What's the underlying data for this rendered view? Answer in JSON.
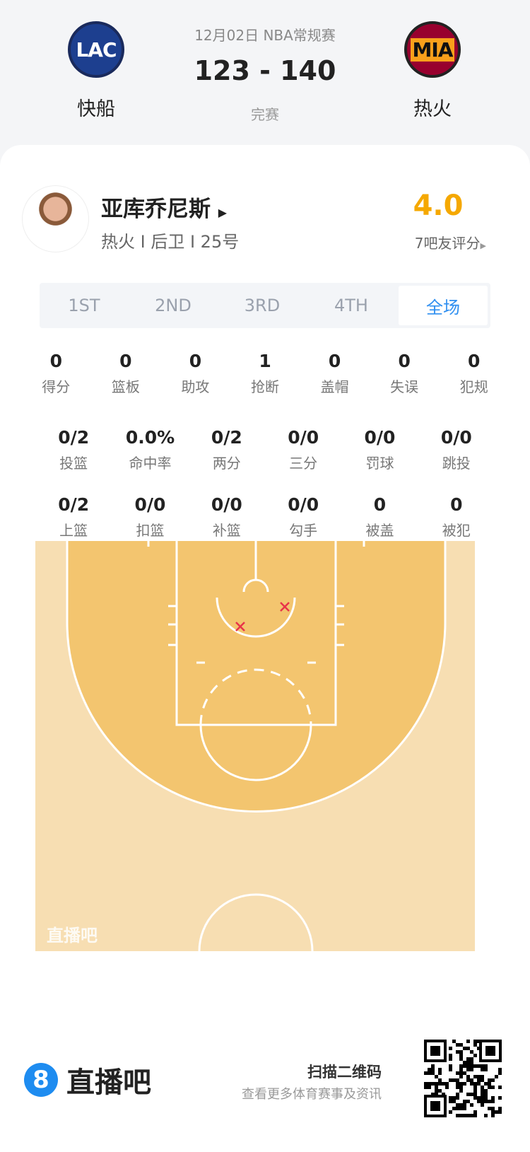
{
  "match": {
    "date_league": "12月02日 NBA常规赛",
    "score": "123 - 140",
    "status": "完赛",
    "home": {
      "abbr": "LAC",
      "name": "快船"
    },
    "away": {
      "abbr": "MIA",
      "name": "热火"
    }
  },
  "player": {
    "name": "亚库乔尼斯",
    "info": "热火 I 后卫 I 25号",
    "rating": "4.0",
    "rating_label": "7吧友评分",
    "rating_color": "#f5a800"
  },
  "tabs": [
    {
      "label": "1ST"
    },
    {
      "label": "2ND"
    },
    {
      "label": "3RD"
    },
    {
      "label": "4TH"
    },
    {
      "label": "全场",
      "active": true
    }
  ],
  "stats_row1": [
    {
      "v": "0",
      "l": "得分"
    },
    {
      "v": "0",
      "l": "篮板"
    },
    {
      "v": "0",
      "l": "助攻"
    },
    {
      "v": "1",
      "l": "抢断"
    },
    {
      "v": "0",
      "l": "盖帽"
    },
    {
      "v": "0",
      "l": "失误"
    },
    {
      "v": "0",
      "l": "犯规"
    }
  ],
  "stats_row2": [
    {
      "v": "0/2",
      "l": "投篮"
    },
    {
      "v": "0.0%",
      "l": "命中率"
    },
    {
      "v": "0/2",
      "l": "两分"
    },
    {
      "v": "0/0",
      "l": "三分"
    },
    {
      "v": "0/0",
      "l": "罚球"
    },
    {
      "v": "0/0",
      "l": "跳投"
    }
  ],
  "stats_row3": [
    {
      "v": "0/2",
      "l": "上篮"
    },
    {
      "v": "0/0",
      "l": "扣篮"
    },
    {
      "v": "0/0",
      "l": "补篮"
    },
    {
      "v": "0/0",
      "l": "勾手"
    },
    {
      "v": "0",
      "l": "被盖"
    },
    {
      "v": "0",
      "l": "被犯"
    }
  ],
  "court": {
    "watermark": "直播吧",
    "shots": [
      {
        "result": "miss"
      },
      {
        "result": "miss"
      }
    ]
  },
  "footer": {
    "brand": "直播吧",
    "scan_title": "扫描二维码",
    "scan_sub": "查看更多体育赛事及资讯"
  }
}
